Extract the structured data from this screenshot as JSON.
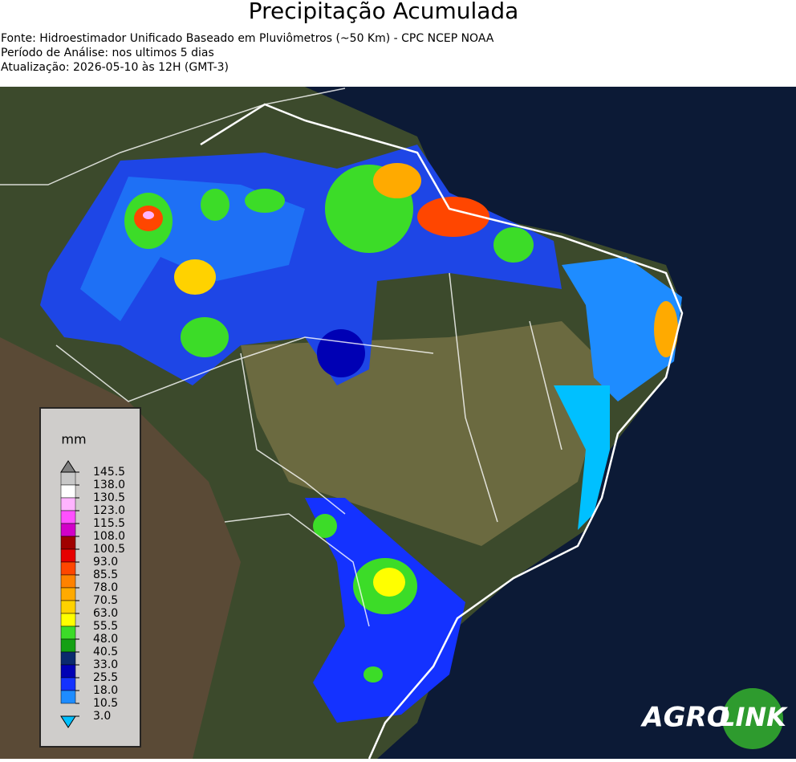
{
  "header": {
    "title": "Precipitação Acumulada",
    "lines": [
      "Fonte: Hidroestimador Unificado Baseado em Pluviômetros (~50 Km) - CPC NCEP NOAA",
      "Período de Análise: nos ultimos 5 dias",
      "Atualização: 2026-05-10 às 12H (GMT-3)"
    ]
  },
  "colorbar": {
    "unit": "mm",
    "ticks": [
      145.5,
      {
        "value": 138,
        "label": "138.0"
      },
      130.5,
      {
        "value": 123,
        "label": "123.0"
      },
      115.5,
      {
        "value": 108,
        "label": "108.0"
      },
      100.5,
      {
        "value": 93,
        "label": "93.0"
      },
      85.5,
      {
        "value": 78,
        "label": "78.0"
      },
      70.5,
      {
        "value": 63,
        "label": "63.0"
      },
      55.5,
      {
        "value": 48,
        "label": "48.0"
      },
      40.5,
      {
        "value": 33,
        "label": "33.0"
      },
      25.5,
      {
        "value": 18,
        "label": "18.0"
      },
      10.5,
      {
        "value": 3,
        "label": "3.0"
      }
    ],
    "colors": [
      "#c8c8c8",
      "#ffffff",
      "#ffb4ff",
      "#ff50ff",
      "#d200c8",
      "#a00000",
      "#e60000",
      "#ff4600",
      "#ff8200",
      "#ffaa00",
      "#ffd200",
      "#ffff00",
      "#3cdc28",
      "#14a014",
      "#0a2a6e",
      "#0000b4",
      "#1432ff",
      "#1e8cff"
    ],
    "over_color": "#808080",
    "under_color": "#00c0ff"
  },
  "logo": {
    "left": "AGRO",
    "right": "LINK"
  }
}
